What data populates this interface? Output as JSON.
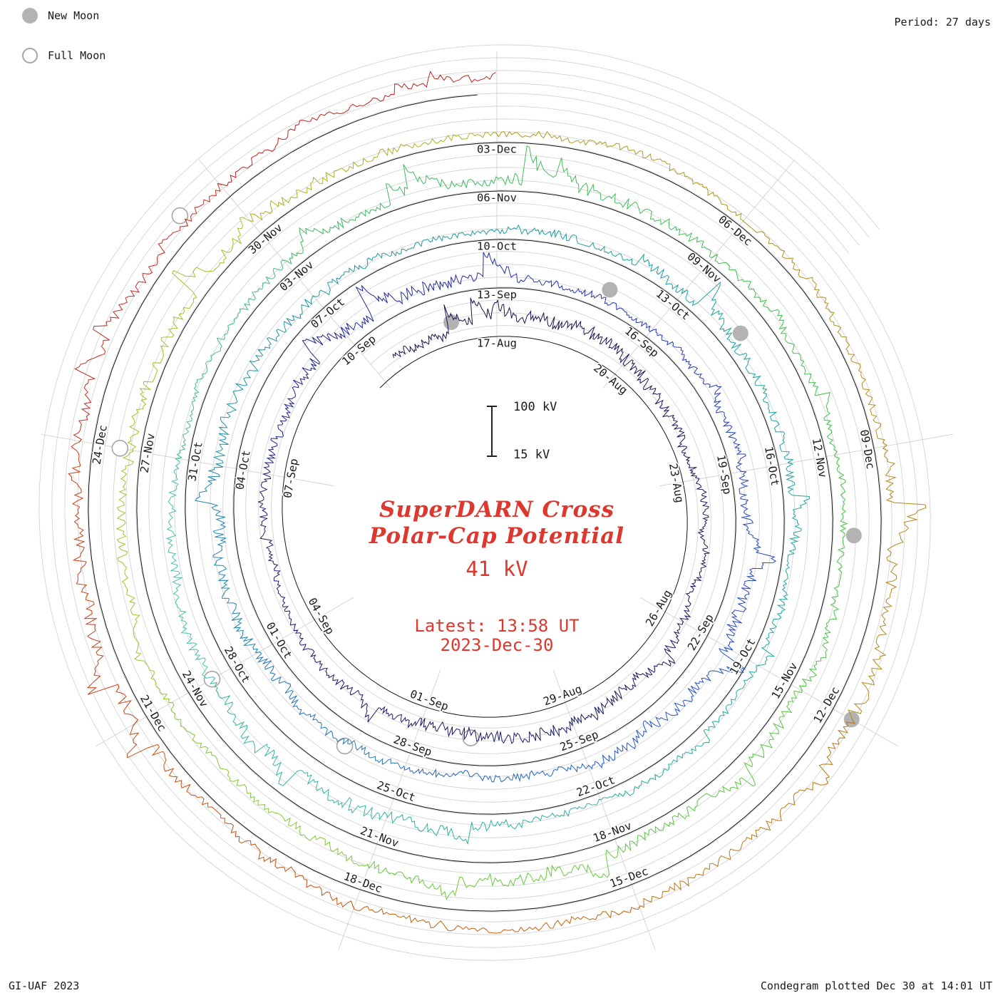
{
  "legend": {
    "new_moon": "New Moon",
    "full_moon": "Full Moon"
  },
  "header": {
    "period": "Period: 27 days"
  },
  "center": {
    "scale_max": "100 kV",
    "scale_min": "15 kV",
    "title_line1": "SuperDARN Cross",
    "title_line2": "Polar-Cap Potential",
    "current_value": "41 kV",
    "latest_time": "Latest: 13:58 UT",
    "latest_date": "2023-Dec-30"
  },
  "footer": {
    "credit": "GI-UAF 2023",
    "plotted": "Condegram plotted Dec 30 at 14:01 UT"
  },
  "colors": {
    "accent_red": "#dd372e",
    "grid_gray": "#cfcfcf",
    "baseline_black": "#151515",
    "moon_fill": "#b3b3b3",
    "moon_stroke": "#a6a6a6",
    "label_text": "#1b1b1b"
  },
  "chart_data": {
    "type": "line",
    "layout": "spiral_condegram",
    "title": "SuperDARN Cross Polar-Cap Potential",
    "units": "kV",
    "value_min_kv": 15,
    "value_max_kv": 100,
    "latest_value_kv": 41,
    "latest_time": "13:58 UT",
    "latest_date": "2023-Dec-30",
    "period_days": 27,
    "revolutions": 5,
    "start_day_label": "17-Aug",
    "end_day_label": "30-Dec",
    "grid_kv": [
      25,
      50,
      75,
      100
    ],
    "date_labels": [
      [
        "17-Aug",
        0
      ],
      [
        "20-Aug",
        3
      ],
      [
        "23-Aug",
        6
      ],
      [
        "26-Aug",
        9
      ],
      [
        "29-Aug",
        12
      ],
      [
        "01-Sep",
        15
      ],
      [
        "04-Sep",
        18
      ],
      [
        "07-Sep",
        21
      ],
      [
        "10-Sep",
        24
      ],
      [
        "13-Sep",
        27
      ],
      [
        "16-Sep",
        30
      ],
      [
        "19-Sep",
        33
      ],
      [
        "22-Sep",
        36
      ],
      [
        "25-Sep",
        39
      ],
      [
        "28-Sep",
        42
      ],
      [
        "01-Oct",
        45
      ],
      [
        "04-Oct",
        48
      ],
      [
        "07-Oct",
        51
      ],
      [
        "10-Oct",
        54
      ],
      [
        "13-Oct",
        57
      ],
      [
        "16-Oct",
        60
      ],
      [
        "19-Oct",
        63
      ],
      [
        "22-Oct",
        66
      ],
      [
        "25-Oct",
        69
      ],
      [
        "28-Oct",
        72
      ],
      [
        "31-Oct",
        75
      ],
      [
        "03-Nov",
        78
      ],
      [
        "06-Nov",
        81
      ],
      [
        "09-Nov",
        84
      ],
      [
        "12-Nov",
        87
      ],
      [
        "15-Nov",
        90
      ],
      [
        "18-Nov",
        93
      ],
      [
        "21-Nov",
        96
      ],
      [
        "24-Nov",
        99
      ],
      [
        "27-Nov",
        102
      ],
      [
        "30-Nov",
        105
      ],
      [
        "03-Dec",
        108
      ],
      [
        "06-Dec",
        111
      ],
      [
        "09-Dec",
        114
      ],
      [
        "12-Dec",
        117
      ],
      [
        "15-Dec",
        120
      ],
      [
        "18-Dec",
        123
      ],
      [
        "21-Dec",
        126
      ],
      [
        "24-Dec",
        129
      ]
    ],
    "moon_markers": {
      "new_moon_days": [
        -1,
        29,
        58,
        88,
        117
      ],
      "full_moon_days": [
        14,
        43,
        72,
        102,
        131.5
      ]
    },
    "color_anchors": [
      [
        0,
        "#16164e"
      ],
      [
        20,
        "#1d1d72"
      ],
      [
        27,
        "#2430a8"
      ],
      [
        36,
        "#2a4ec2"
      ],
      [
        44,
        "#2579b8"
      ],
      [
        50,
        "#1f96a2"
      ],
      [
        60,
        "#1fa5a2"
      ],
      [
        70,
        "#33b4a4"
      ],
      [
        74,
        "#4ec3ae"
      ],
      [
        79,
        "#3eb963"
      ],
      [
        88,
        "#47c34a"
      ],
      [
        95,
        "#6cc93a"
      ],
      [
        100,
        "#95c92c"
      ],
      [
        105,
        "#adbc22"
      ],
      [
        109,
        "#b49b1a"
      ],
      [
        116,
        "#b4861b"
      ],
      [
        121,
        "#c1660f"
      ],
      [
        127,
        "#ca4414"
      ],
      [
        131,
        "#c62a22"
      ],
      [
        135,
        "#bf1d1d"
      ]
    ],
    "series": {
      "note": "High-cadence cross polar-cap potential trace, 15-100 kV, wrapped on a 27-day spiral; individual samples not resolvable at this scale - rendered as seeded synthetic noise",
      "seed": 20231230,
      "step_days": 0.03
    }
  }
}
